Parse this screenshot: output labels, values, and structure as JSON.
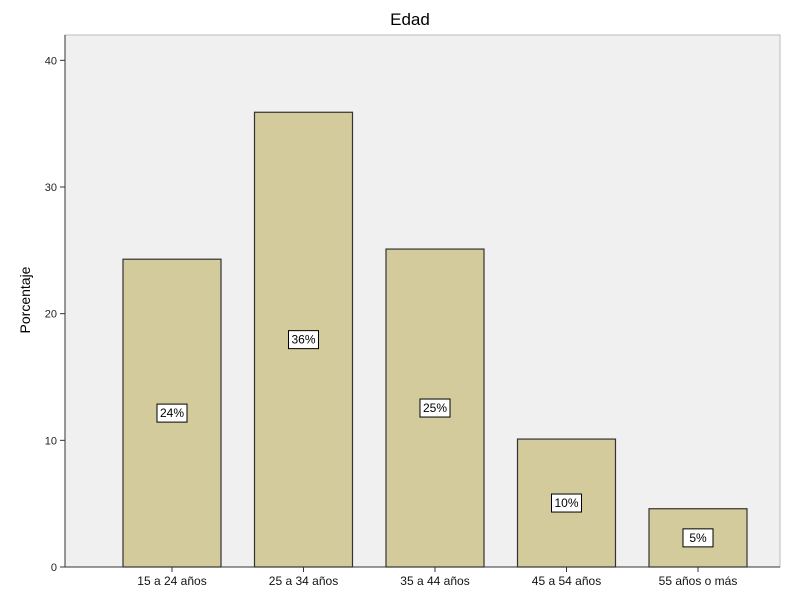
{
  "chart_data": {
    "type": "bar",
    "title": "Edad",
    "xlabel": "",
    "ylabel": "Porcentaje",
    "categories": [
      "15 a 24 años",
      "25 a 34 años",
      "35 a 44 años",
      "45 a 54 años",
      "55 años o más"
    ],
    "values": [
      24.3,
      35.9,
      25.1,
      10.1,
      4.6
    ],
    "data_labels": [
      "24%",
      "36%",
      "25%",
      "10%",
      "5%"
    ],
    "ylim": [
      0,
      42
    ],
    "yticks": [
      0,
      10,
      20,
      30,
      40
    ],
    "grid": false,
    "colors": {
      "plot_background": "#f0f0f0",
      "bar_fill": "#d3cb9b",
      "bar_stroke": "#333333",
      "axis": "#333333"
    }
  }
}
